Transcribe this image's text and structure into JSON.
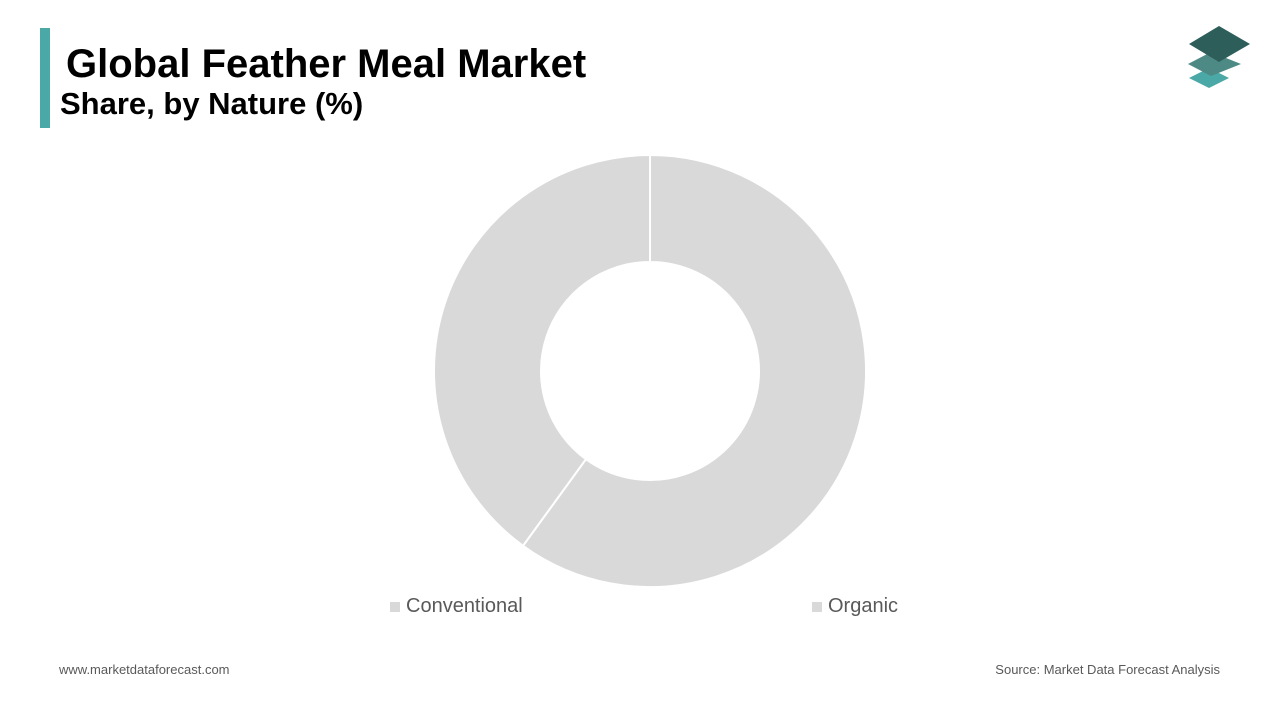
{
  "header": {
    "title": "Global Feather Meal Market",
    "subtitle": "Share, by Nature (%)"
  },
  "logo": {
    "icon": "stacked-layers-logo",
    "colors": [
      "#2e5e5a",
      "#4e8a85",
      "#4aa9a6"
    ]
  },
  "chart_data": {
    "type": "pie",
    "variant": "donut",
    "categories": [
      "Conventional",
      "Organic"
    ],
    "values": [
      60,
      40
    ],
    "segment_color": "#d9d9d9",
    "separator_color": "#ffffff",
    "legend_placement": "bottom",
    "data_labels": false
  },
  "footer": {
    "website": "www.marketdataforecast.com",
    "source": "Source: Market Data Forecast Analysis"
  },
  "colors": {
    "accent": "#4aa9a6",
    "text_muted": "#595959"
  }
}
